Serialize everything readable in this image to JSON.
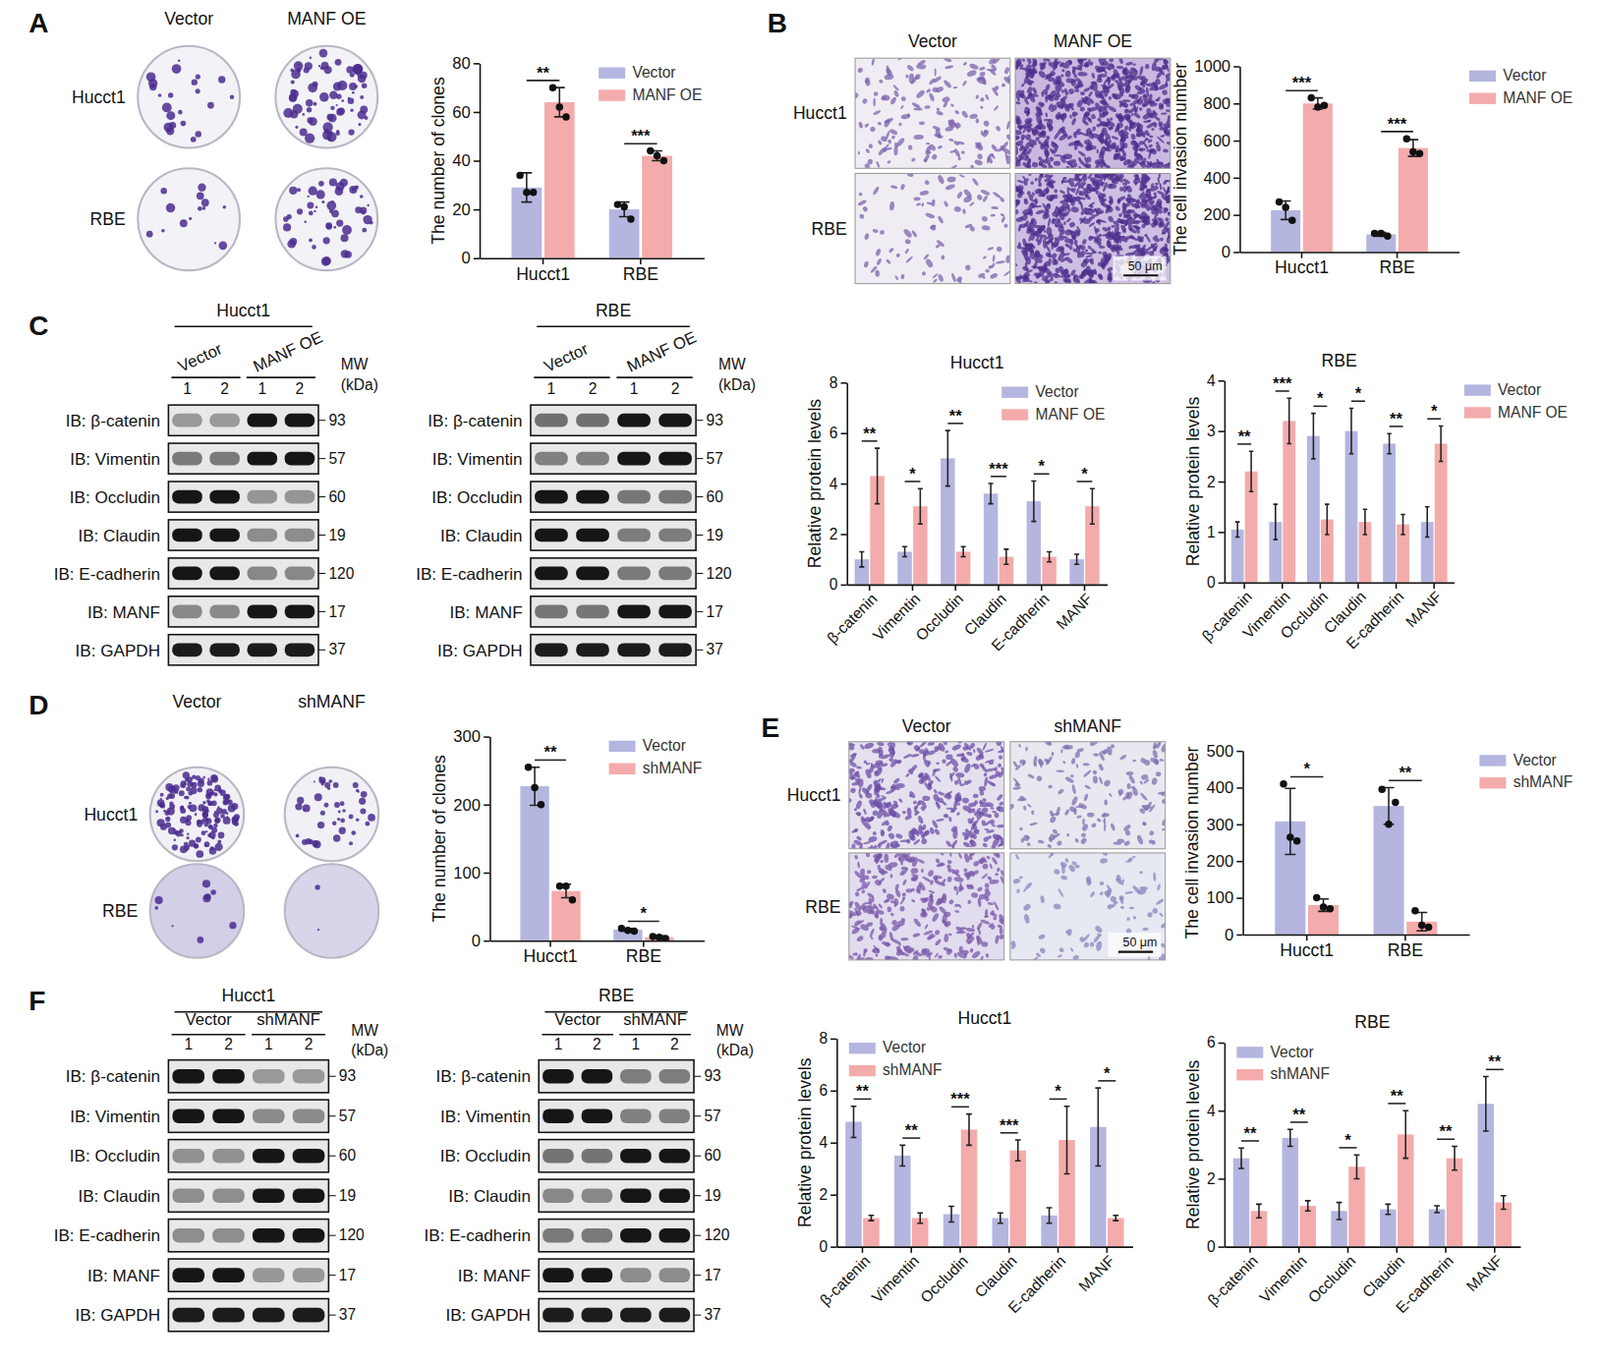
{
  "figure": {
    "panels": [
      {
        "letter": "A",
        "columns": [
          "Vector",
          "MANF OE"
        ],
        "rows": [
          "Hucct1",
          "RBE"
        ]
      },
      {
        "letter": "B",
        "columns": [
          "Vector",
          "MANF OE"
        ],
        "rows": [
          "Hucct1",
          "RBE"
        ],
        "scale_bar": "50 μm"
      },
      {
        "letter": "C",
        "blots": [
          {
            "title": "Hucct1",
            "groups": [
              "Vector",
              "MANF OE"
            ],
            "lanes": [
              1,
              2,
              1,
              2
            ],
            "mw_label": [
              "MW",
              "(kDa)"
            ],
            "rows": [
              {
                "label": "IB: β-catenin",
                "mw": 93
              },
              {
                "label": "IB: Vimentin",
                "mw": 57
              },
              {
                "label": "IB: Occludin",
                "mw": 60
              },
              {
                "label": "IB: Claudin",
                "mw": 19
              },
              {
                "label": "IB: E-cadherin",
                "mw": 120
              },
              {
                "label": "IB: MANF",
                "mw": 17
              },
              {
                "label": "IB: GAPDH",
                "mw": 37
              }
            ]
          },
          {
            "title": "RBE",
            "groups": [
              "Vector",
              "MANF OE"
            ],
            "lanes": [
              1,
              2,
              1,
              2
            ],
            "mw_label": [
              "MW",
              "(kDa)"
            ],
            "rows": [
              {
                "label": "IB: β-catenin",
                "mw": 93
              },
              {
                "label": "IB: Vimentin",
                "mw": 57
              },
              {
                "label": "IB: Occludin",
                "mw": 60
              },
              {
                "label": "IB: Claudin",
                "mw": 19
              },
              {
                "label": "IB: E-cadherin",
                "mw": 120
              },
              {
                "label": "IB: MANF",
                "mw": 17
              },
              {
                "label": "IB: GAPDH",
                "mw": 37
              }
            ]
          }
        ]
      },
      {
        "letter": "D",
        "columns": [
          "Vector",
          "shMANF"
        ],
        "rows": [
          "Hucct1",
          "RBE"
        ]
      },
      {
        "letter": "E",
        "columns": [
          "Vector",
          "shMANF"
        ],
        "rows": [
          "Hucct1",
          "RBE"
        ],
        "scale_bar": "50 μm"
      },
      {
        "letter": "F",
        "blots": [
          {
            "title": "Hucct1",
            "groups": [
              "Vector",
              "shMANF"
            ],
            "lanes": [
              1,
              2,
              1,
              2
            ],
            "mw_label": [
              "MW",
              "(kDa)"
            ],
            "rows": [
              {
                "label": "IB: β-catenin",
                "mw": 93
              },
              {
                "label": "IB: Vimentin",
                "mw": 57
              },
              {
                "label": "IB: Occludin",
                "mw": 60
              },
              {
                "label": "IB: Claudin",
                "mw": 19
              },
              {
                "label": "IB: E-cadherin",
                "mw": 120
              },
              {
                "label": "IB: MANF",
                "mw": 17
              },
              {
                "label": "IB: GAPDH",
                "mw": 37
              }
            ]
          },
          {
            "title": "RBE",
            "groups": [
              "Vector",
              "shMANF"
            ],
            "lanes": [
              1,
              2,
              1,
              2
            ],
            "mw_label": [
              "MW",
              "(kDa)"
            ],
            "rows": [
              {
                "label": "IB: β-catenin",
                "mw": 93
              },
              {
                "label": "IB: Vimentin",
                "mw": 57
              },
              {
                "label": "IB: Occludin",
                "mw": 60
              },
              {
                "label": "IB: Claudin",
                "mw": 19
              },
              {
                "label": "IB: E-cadherin",
                "mw": 120
              },
              {
                "label": "IB: MANF",
                "mw": 17
              },
              {
                "label": "IB: GAPDH",
                "mw": 37
              }
            ]
          }
        ]
      }
    ]
  },
  "chart_data": [
    {
      "type": "bar",
      "y_label": "The number of clones",
      "categories": [
        "Hucct1",
        "RBE"
      ],
      "series": [
        {
          "name": "Vector",
          "color": "#b4b6e0",
          "values": [
            29,
            20
          ],
          "errors": [
            6,
            3
          ],
          "points": [
            [
              34,
              27,
              27
            ],
            [
              22,
              21,
              16
            ]
          ]
        },
        {
          "name": "MANF OE",
          "color": "#f4abab",
          "values": [
            64,
            42
          ],
          "errors": [
            6,
            2
          ],
          "points": [
            [
              70,
              62,
              58
            ],
            [
              44,
              42,
              40
            ]
          ]
        }
      ],
      "significance": [
        "**",
        "***"
      ],
      "ylim": [
        0,
        80
      ],
      "yticks": [
        0,
        20,
        40,
        60,
        80
      ],
      "legend": "top-right"
    },
    {
      "type": "bar",
      "y_label": "The cell invasion number",
      "categories": [
        "Hucct1",
        "RBE"
      ],
      "series": [
        {
          "name": "Vector",
          "color": "#b4b6e0",
          "values": [
            225,
            95
          ],
          "errors": [
            50,
            10
          ],
          "points": [
            [
              270,
              240,
              170
            ],
            [
              100,
              100,
              85
            ]
          ]
        },
        {
          "name": "MANF OE",
          "color": "#f4abab",
          "values": [
            800,
            560
          ],
          "errors": [
            30,
            45
          ],
          "points": [
            [
              830,
              780,
              790
            ],
            [
              610,
              540,
              530
            ]
          ]
        }
      ],
      "significance": [
        "***",
        "***"
      ],
      "ylim": [
        0,
        1000
      ],
      "yticks": [
        0,
        200,
        400,
        600,
        800,
        1000
      ],
      "legend": "right"
    },
    {
      "type": "bar",
      "title": "Hucct1",
      "y_label": "Relative  protein levels",
      "categories": [
        "β-catenin",
        "Vimentin",
        "Occludin",
        "Claudin",
        "E-cadherin",
        "MANF"
      ],
      "series": [
        {
          "name": "Vector",
          "color": "#b4b6e0",
          "values": [
            1.0,
            1.3,
            5.0,
            3.6,
            3.3,
            1.0
          ],
          "errors": [
            0.3,
            0.2,
            1.1,
            0.4,
            0.8,
            0.2
          ]
        },
        {
          "name": "MANF OE",
          "color": "#f4abab",
          "values": [
            4.3,
            3.1,
            1.3,
            1.1,
            1.1,
            3.1
          ],
          "errors": [
            1.1,
            0.7,
            0.2,
            0.3,
            0.2,
            0.7
          ]
        }
      ],
      "significance": [
        "**",
        "*",
        "**",
        "***",
        "*",
        "*"
      ],
      "ylim": [
        0,
        8
      ],
      "yticks": [
        0,
        2,
        4,
        6,
        8
      ],
      "legend": "top-right"
    },
    {
      "type": "bar",
      "title": "RBE",
      "y_label": "Relative  protein levels",
      "categories": [
        "β-catenin",
        "Vimentin",
        "Occludin",
        "Claudin",
        "E-cadherin",
        "MANF"
      ],
      "series": [
        {
          "name": "Vector",
          "color": "#b4b6e0",
          "values": [
            1.05,
            1.2,
            2.9,
            3.0,
            2.75,
            1.2
          ],
          "errors": [
            0.15,
            0.35,
            0.45,
            0.45,
            0.2,
            0.3
          ]
        },
        {
          "name": "MANF OE",
          "color": "#f4abab",
          "values": [
            2.2,
            3.2,
            1.25,
            1.2,
            1.15,
            2.75
          ],
          "errors": [
            0.4,
            0.45,
            0.3,
            0.25,
            0.2,
            0.35
          ]
        }
      ],
      "significance": [
        "**",
        "***",
        "*",
        "*",
        "**",
        "*"
      ],
      "ylim": [
        0,
        4
      ],
      "yticks": [
        0,
        1,
        2,
        3,
        4
      ],
      "legend": "right"
    },
    {
      "type": "bar",
      "y_label": "The number of clones",
      "categories": [
        "Hucct1",
        "RBE"
      ],
      "series": [
        {
          "name": "Vector",
          "color": "#b4b6e0",
          "values": [
            227,
            16
          ],
          "errors": [
            28,
            2
          ],
          "points": [
            [
              255,
              225,
              200
            ],
            [
              18,
              15,
              14
            ]
          ]
        },
        {
          "name": "shMANF",
          "color": "#f4abab",
          "values": [
            73,
            5
          ],
          "errors": [
            10,
            2
          ],
          "points": [
            [
              80,
              80,
              60
            ],
            [
              6,
              5,
              3
            ]
          ]
        }
      ],
      "significance": [
        "**",
        "*"
      ],
      "ylim": [
        0,
        300
      ],
      "yticks": [
        0,
        100,
        200,
        300
      ],
      "legend": "top-right"
    },
    {
      "type": "bar",
      "y_label": "The cell invasion number",
      "categories": [
        "Hucct1",
        "RBE"
      ],
      "series": [
        {
          "name": "Vector",
          "color": "#b4b6e0",
          "values": [
            308,
            350
          ],
          "errors": [
            90,
            50
          ],
          "points": [
            [
              410,
              265,
              255
            ],
            [
              395,
              300,
              360
            ]
          ]
        },
        {
          "name": "shMANF",
          "color": "#f4abab",
          "values": [
            80,
            35
          ],
          "errors": [
            17,
            25
          ],
          "points": [
            [
              100,
              75,
              70
            ],
            [
              65,
              25,
              20
            ]
          ]
        }
      ],
      "significance": [
        "*",
        "**"
      ],
      "ylim": [
        0,
        500
      ],
      "yticks": [
        0,
        100,
        200,
        300,
        400,
        500
      ],
      "legend": "right"
    },
    {
      "type": "bar",
      "title": "Hucct1",
      "y_label": "Relative  protein levels",
      "categories": [
        "β-catenin",
        "Vimentin",
        "Occludin",
        "Claudin",
        "E-cadherin",
        "MANF"
      ],
      "series": [
        {
          "name": "Vector",
          "color": "#b4b6e0",
          "values": [
            4.8,
            3.5,
            1.25,
            1.1,
            1.2,
            4.6
          ],
          "errors": [
            0.6,
            0.4,
            0.3,
            0.2,
            0.3,
            1.5
          ]
        },
        {
          "name": "shMANF",
          "color": "#f4abab",
          "values": [
            1.1,
            1.1,
            4.5,
            3.7,
            4.1,
            1.1
          ],
          "errors": [
            0.1,
            0.2,
            0.6,
            0.4,
            1.3,
            0.1
          ]
        }
      ],
      "significance": [
        "**",
        "**",
        "***",
        "***",
        "*",
        "*"
      ],
      "ylim": [
        0,
        8
      ],
      "yticks": [
        0,
        2,
        4,
        6,
        8
      ],
      "legend": "top-left"
    },
    {
      "type": "bar",
      "title": "RBE",
      "y_label": "Relative  protein levels",
      "categories": [
        "β-catenin",
        "Vimentin",
        "Occludin",
        "Claudin",
        "E-cadherin",
        "MANF"
      ],
      "series": [
        {
          "name": "Vector",
          "color": "#b4b6e0",
          "values": [
            2.6,
            3.2,
            1.05,
            1.1,
            1.1,
            4.2
          ],
          "errors": [
            0.3,
            0.25,
            0.25,
            0.15,
            0.1,
            0.8
          ]
        },
        {
          "name": "shMANF",
          "color": "#f4abab",
          "values": [
            1.05,
            1.2,
            2.35,
            3.3,
            2.6,
            1.3
          ],
          "errors": [
            0.2,
            0.15,
            0.35,
            0.7,
            0.35,
            0.2
          ]
        }
      ],
      "significance": [
        "**",
        "**",
        "*",
        "**",
        "**",
        "**"
      ],
      "ylim": [
        0,
        6
      ],
      "yticks": [
        0,
        2,
        4,
        6
      ],
      "legend": "top-left"
    }
  ]
}
